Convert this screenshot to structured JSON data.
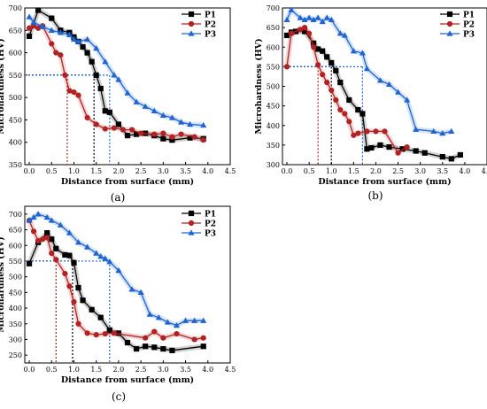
{
  "chart_data": [
    {
      "id": "a",
      "type": "line",
      "caption": "(a)",
      "xlabel": "Distance from surface (mm)",
      "ylabel": "Microhardness (HV)",
      "xlim": [
        -0.1,
        4.5
      ],
      "ylim": [
        350,
        700
      ],
      "xticks": [
        0.0,
        0.5,
        1.0,
        1.5,
        2.0,
        2.5,
        3.0,
        3.5,
        4.0,
        4.5
      ],
      "yticks": [
        350,
        400,
        450,
        500,
        550,
        600,
        650,
        700
      ],
      "legend_position": "top-right",
      "series": [
        {
          "name": "P1",
          "color": "#000000",
          "marker": "square",
          "x": [
            0.0,
            0.2,
            0.5,
            0.7,
            0.9,
            1.0,
            1.1,
            1.2,
            1.3,
            1.4,
            1.5,
            1.6,
            1.7,
            1.8,
            2.0,
            2.2,
            2.4,
            2.6,
            2.8,
            3.0,
            3.2,
            3.6,
            3.9
          ],
          "y": [
            637,
            695,
            677,
            650,
            645,
            635,
            625,
            613,
            600,
            580,
            550,
            520,
            470,
            467,
            440,
            415,
            418,
            420,
            415,
            408,
            405,
            410,
            408
          ]
        },
        {
          "name": "P2",
          "color": "#b22222",
          "marker": "circle",
          "x": [
            0.0,
            0.1,
            0.2,
            0.3,
            0.5,
            0.6,
            0.7,
            0.8,
            0.9,
            1.0,
            1.1,
            1.3,
            1.5,
            1.7,
            1.9,
            2.1,
            2.3,
            2.5,
            2.8,
            3.0,
            3.2,
            3.4,
            3.7,
            3.9
          ],
          "y": [
            655,
            660,
            655,
            660,
            620,
            600,
            595,
            550,
            515,
            512,
            505,
            455,
            440,
            430,
            432,
            428,
            428,
            420,
            418,
            420,
            412,
            418,
            412,
            405
          ]
        },
        {
          "name": "P3",
          "color": "#1e64d2",
          "marker": "triangle",
          "x": [
            0.0,
            0.1,
            0.3,
            0.5,
            0.7,
            0.9,
            1.0,
            1.1,
            1.3,
            1.5,
            1.7,
            1.9,
            2.0,
            2.2,
            2.4,
            2.6,
            2.8,
            3.0,
            3.2,
            3.4,
            3.6,
            3.9
          ],
          "y": [
            680,
            668,
            658,
            650,
            645,
            640,
            630,
            625,
            630,
            610,
            580,
            550,
            540,
            510,
            490,
            480,
            470,
            460,
            455,
            445,
            440,
            438
          ]
        }
      ],
      "reference": {
        "y": 550,
        "x": [
          0.85,
          1.45,
          1.8
        ],
        "colors": [
          "#b22222",
          "#000000",
          "#1e64d2"
        ]
      }
    },
    {
      "id": "b",
      "type": "line",
      "caption": "(b)",
      "xlabel": "Distance from surface (mm)",
      "ylabel": "Microhardness (HV)",
      "xlim": [
        -0.1,
        4.5
      ],
      "ylim": [
        300,
        700
      ],
      "xticks": [
        0.0,
        0.5,
        1.0,
        1.5,
        2.0,
        2.5,
        3.0,
        3.5,
        4.0,
        4.5
      ],
      "yticks": [
        300,
        350,
        400,
        450,
        500,
        550,
        600,
        650,
        700
      ],
      "legend_position": "top-right",
      "series": [
        {
          "name": "P1",
          "color": "#000000",
          "marker": "square",
          "x": [
            0.0,
            0.1,
            0.2,
            0.4,
            0.6,
            0.7,
            0.8,
            0.9,
            1.0,
            1.1,
            1.2,
            1.4,
            1.6,
            1.7,
            1.8,
            1.9,
            2.1,
            2.3,
            2.6,
            2.9,
            3.1,
            3.5,
            3.7,
            3.9
          ],
          "y": [
            630,
            638,
            640,
            640,
            610,
            595,
            590,
            575,
            560,
            540,
            510,
            465,
            440,
            430,
            340,
            343,
            350,
            345,
            340,
            335,
            330,
            320,
            315,
            325
          ]
        },
        {
          "name": "P2",
          "color": "#b22222",
          "marker": "circle",
          "x": [
            0.0,
            0.1,
            0.3,
            0.4,
            0.5,
            0.6,
            0.7,
            0.8,
            0.9,
            1.0,
            1.1,
            1.2,
            1.3,
            1.4,
            1.5,
            1.6,
            1.8,
            2.0,
            2.2,
            2.5,
            2.7
          ],
          "y": [
            550,
            635,
            645,
            650,
            635,
            600,
            555,
            530,
            510,
            490,
            465,
            440,
            430,
            410,
            375,
            380,
            385,
            385,
            385,
            330,
            345
          ]
        },
        {
          "name": "P3",
          "color": "#1e64d2",
          "marker": "triangle",
          "x": [
            0.0,
            0.1,
            0.3,
            0.4,
            0.5,
            0.6,
            0.7,
            0.8,
            0.9,
            1.0,
            1.2,
            1.3,
            1.5,
            1.7,
            1.8,
            2.1,
            2.3,
            2.5,
            2.7,
            2.9,
            3.3,
            3.5,
            3.7
          ],
          "y": [
            670,
            695,
            675,
            670,
            675,
            670,
            675,
            665,
            675,
            670,
            635,
            630,
            590,
            585,
            545,
            515,
            505,
            485,
            465,
            390,
            385,
            380,
            385
          ]
        }
      ],
      "reference": {
        "y": 550,
        "x": [
          0.7,
          1.0,
          1.7
        ],
        "colors": [
          "#b22222",
          "#000000",
          "#1e64d2"
        ]
      }
    },
    {
      "id": "c",
      "type": "line",
      "caption": "(c)",
      "xlabel": "Distance from surface (mm)",
      "ylabel": "Microhardness (HV)",
      "xlim": [
        -0.1,
        4.5
      ],
      "ylim": [
        225,
        725
      ],
      "xticks": [
        0.0,
        0.5,
        1.0,
        1.5,
        2.0,
        2.5,
        3.0,
        3.5,
        4.0,
        4.5
      ],
      "yticks": [
        250,
        300,
        350,
        400,
        450,
        500,
        550,
        600,
        650,
        700
      ],
      "legend_position": "top-right",
      "series": [
        {
          "name": "P1",
          "color": "#000000",
          "marker": "square",
          "x": [
            0.0,
            0.2,
            0.4,
            0.5,
            0.6,
            0.8,
            0.9,
            1.0,
            1.1,
            1.2,
            1.4,
            1.6,
            1.8,
            2.0,
            2.2,
            2.4,
            2.6,
            2.8,
            3.0,
            3.2,
            3.9
          ],
          "y": [
            542,
            610,
            640,
            620,
            590,
            570,
            568,
            545,
            465,
            425,
            395,
            370,
            330,
            320,
            290,
            270,
            278,
            275,
            270,
            265,
            278
          ]
        },
        {
          "name": "P2",
          "color": "#b22222",
          "marker": "circle",
          "x": [
            0.0,
            0.1,
            0.2,
            0.3,
            0.4,
            0.5,
            0.6,
            0.8,
            0.9,
            1.0,
            1.1,
            1.3,
            1.5,
            1.7,
            1.9,
            2.6,
            2.8,
            3.0,
            3.3,
            3.7,
            3.9
          ],
          "y": [
            680,
            645,
            615,
            620,
            625,
            575,
            555,
            510,
            470,
            420,
            350,
            320,
            315,
            318,
            320,
            305,
            325,
            305,
            318,
            300,
            305
          ]
        },
        {
          "name": "P3",
          "color": "#1e64d2",
          "marker": "triangle",
          "x": [
            0.0,
            0.1,
            0.2,
            0.4,
            0.5,
            0.7,
            0.9,
            1.1,
            1.3,
            1.5,
            1.6,
            1.7,
            1.8,
            2.0,
            2.3,
            2.5,
            2.7,
            2.9,
            3.1,
            3.3,
            3.5,
            3.7,
            3.9
          ],
          "y": [
            680,
            690,
            700,
            690,
            680,
            665,
            640,
            610,
            595,
            575,
            565,
            558,
            548,
            520,
            460,
            450,
            380,
            370,
            355,
            345,
            360,
            360,
            360
          ]
        }
      ],
      "reference": {
        "y": 550,
        "x": [
          0.6,
          0.97,
          1.8
        ],
        "colors": [
          "#b22222",
          "#000000",
          "#1e64d2"
        ]
      }
    }
  ]
}
